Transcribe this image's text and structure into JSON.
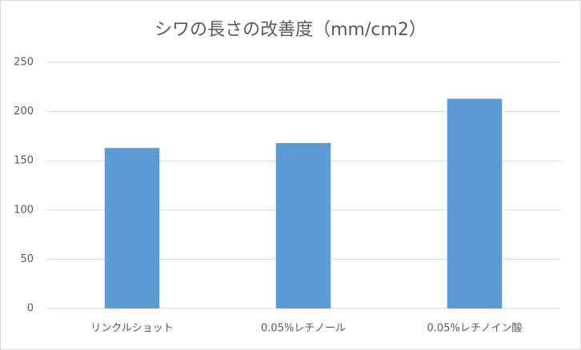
{
  "chart_data": {
    "type": "bar",
    "title": "シワの長さの改善度（mm/cm2）",
    "categories": [
      "リンクルショット",
      "0.05%レチノール",
      "0.05%レチノイン酸"
    ],
    "values": [
      163,
      168,
      213
    ],
    "color": "#5b9bd5",
    "ylim": [
      0,
      250
    ],
    "yticks": [
      0,
      50,
      100,
      150,
      200,
      250
    ],
    "grid": true
  }
}
